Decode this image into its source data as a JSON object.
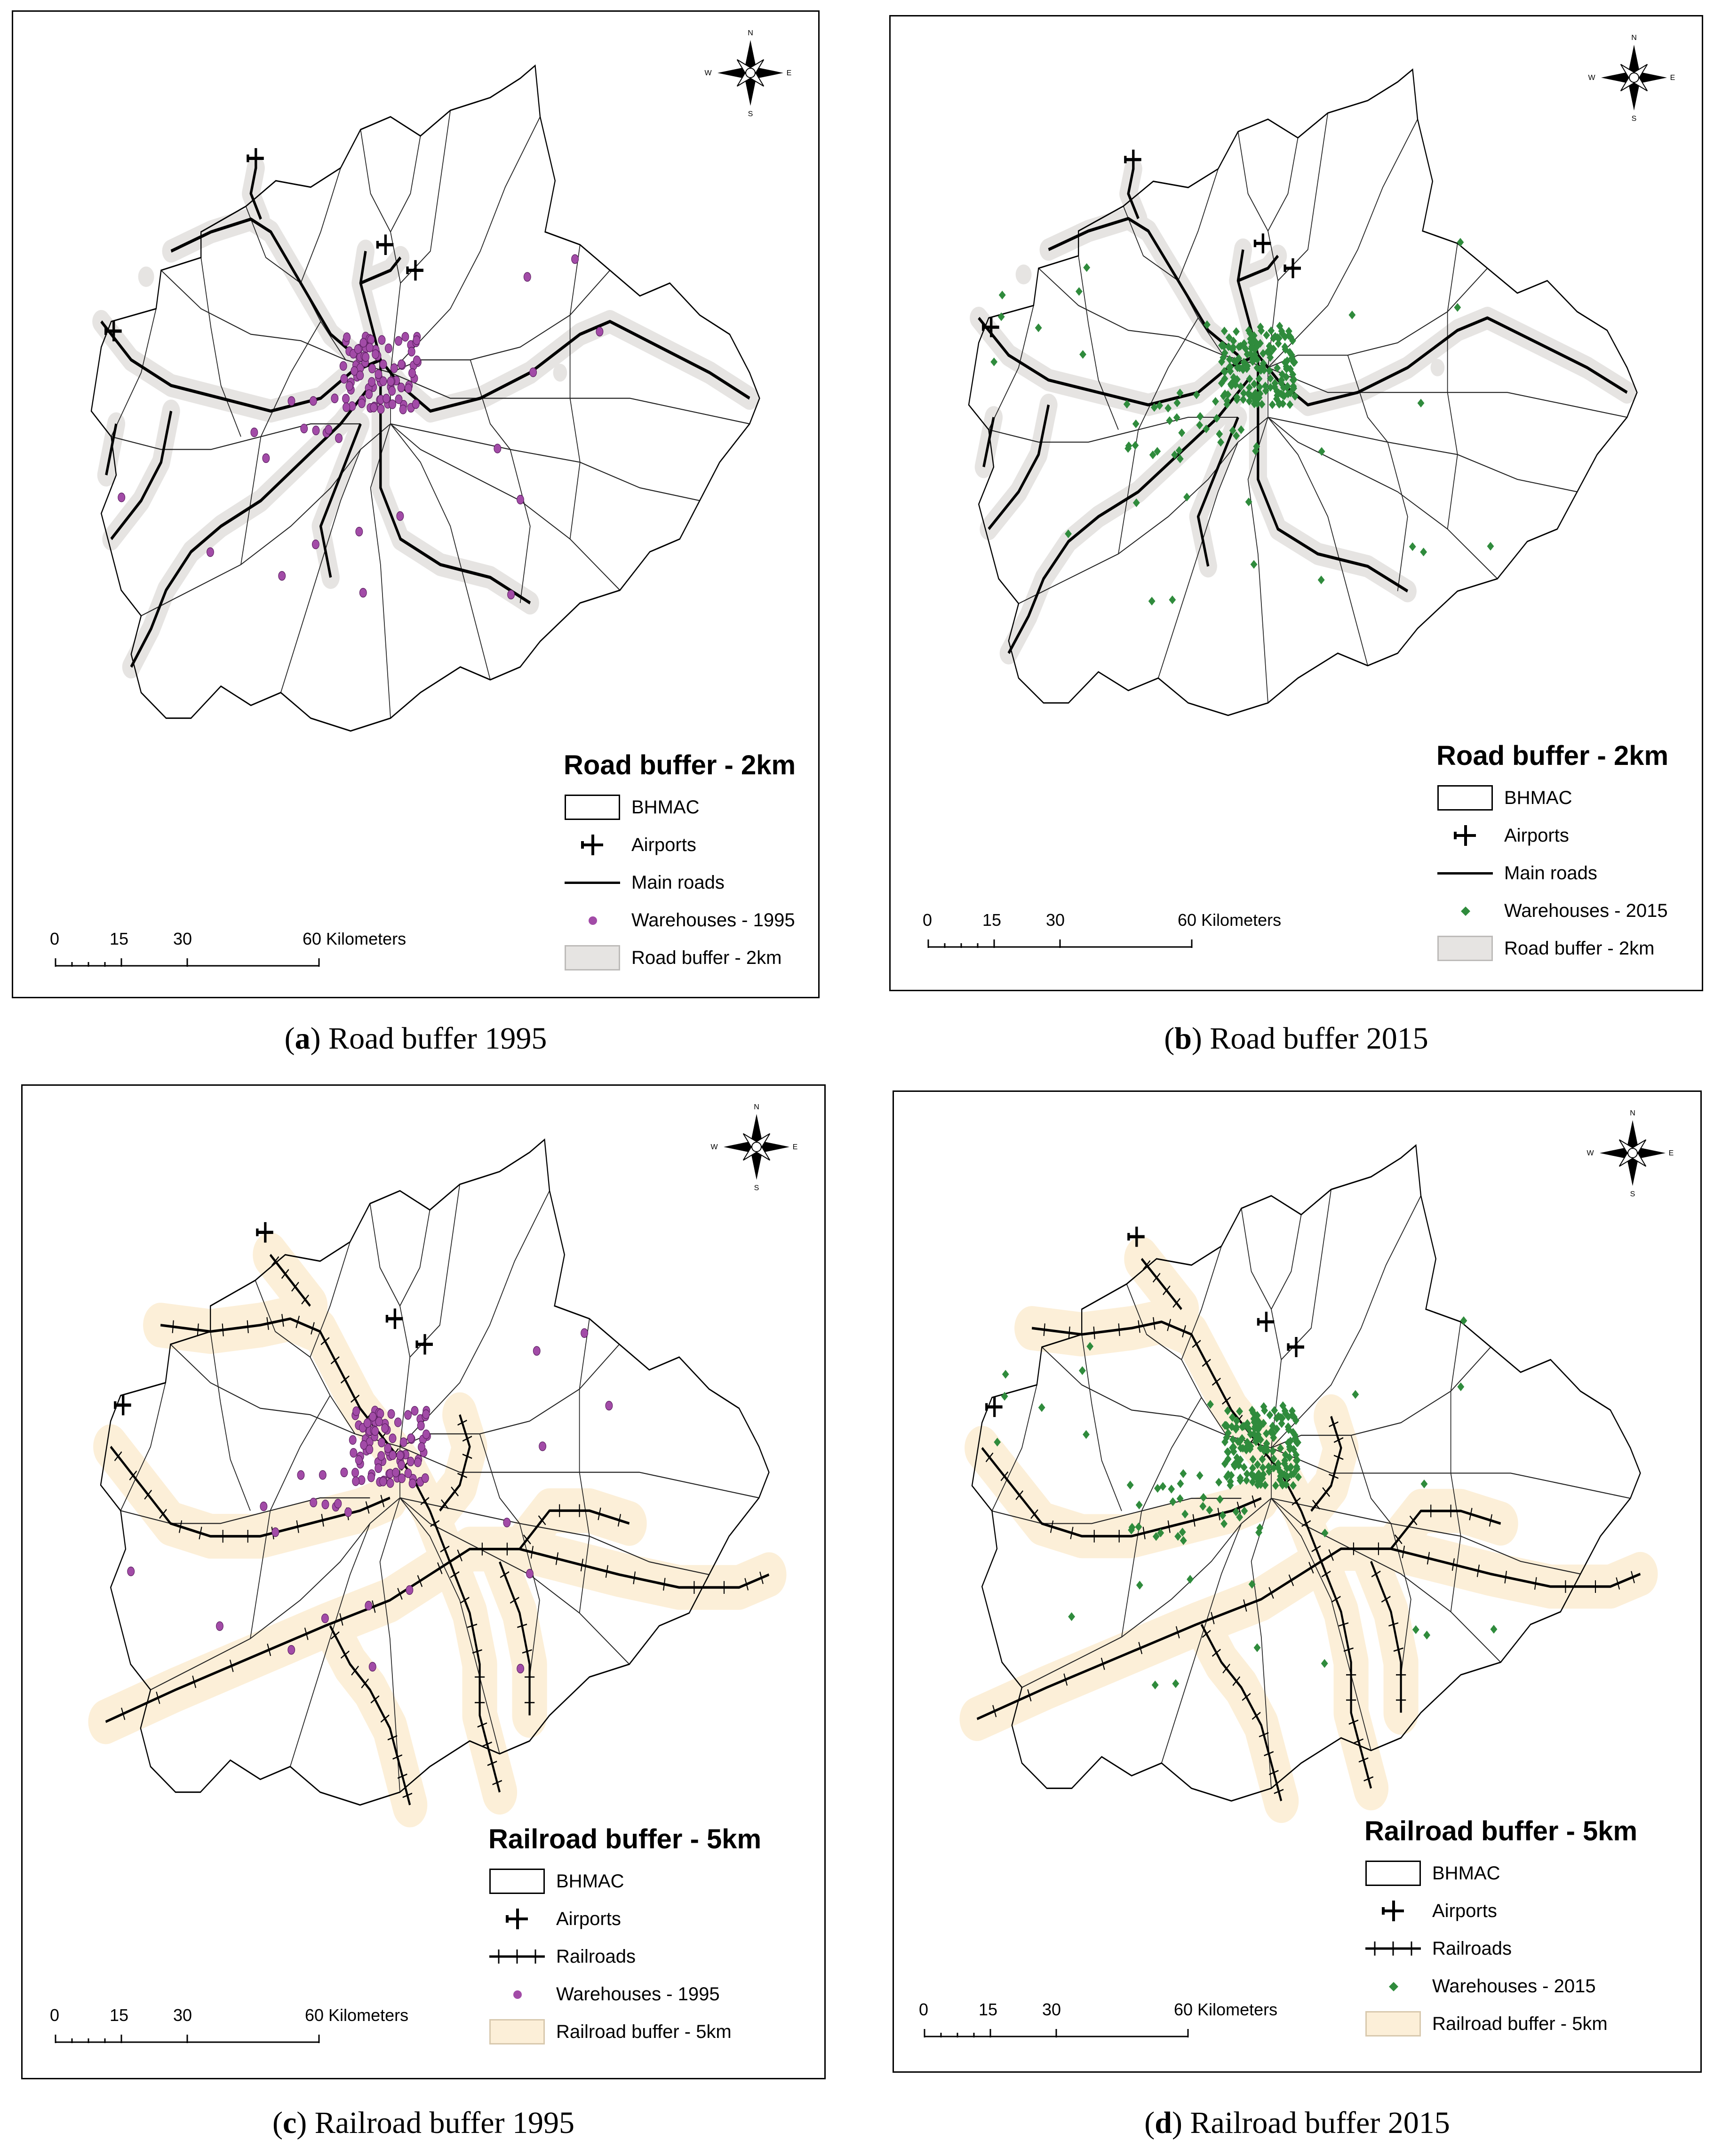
{
  "colors": {
    "buffer_road": "#e6e4e2",
    "buffer_rail": "#fcefd8",
    "warehouse_1995": "#a24ba7",
    "warehouse_2015": "#2f8b3c"
  },
  "panels": [
    {
      "id": "a",
      "kind": "road",
      "year": "1995",
      "legend_title": "Road buffer - 2km",
      "legend_items": [
        "BHMAC",
        "Airports",
        "Main roads",
        "Warehouses - 1995",
        "Road buffer - 2km"
      ],
      "scale": [
        "0",
        "15",
        "30",
        "60 Kilometers"
      ],
      "caption_letter": "a",
      "caption_text": "Road buffer 1995"
    },
    {
      "id": "b",
      "kind": "road",
      "year": "2015",
      "legend_title": "Road buffer - 2km",
      "legend_items": [
        "BHMAC",
        "Airports",
        "Main roads",
        "Warehouses - 2015",
        "Road buffer - 2km"
      ],
      "scale": [
        "0",
        "15",
        "30",
        "60 Kilometers"
      ],
      "caption_letter": "b",
      "caption_text": "Road buffer 2015"
    },
    {
      "id": "c",
      "kind": "rail",
      "year": "1995",
      "legend_title": "Railroad buffer - 5km",
      "legend_items": [
        "BHMAC",
        "Airports",
        "Railroads",
        "Warehouses - 1995",
        "Railroad buffer - 5km"
      ],
      "scale": [
        "0",
        "15",
        "30",
        "60 Kilometers"
      ],
      "caption_letter": "c",
      "caption_text": "Railroad buffer 1995"
    },
    {
      "id": "d",
      "kind": "rail",
      "year": "2015",
      "legend_title": "Railroad buffer - 5km",
      "legend_items": [
        "BHMAC",
        "Airports",
        "Railroads",
        "Warehouses - 2015",
        "Railroad buffer - 5km"
      ],
      "scale": [
        "0",
        "15",
        "30",
        "60 Kilometers"
      ],
      "caption_letter": "d",
      "caption_text": "Railroad buffer 2015"
    }
  ],
  "compass": {
    "n": "N",
    "s": "S",
    "e": "E",
    "w": "W"
  }
}
